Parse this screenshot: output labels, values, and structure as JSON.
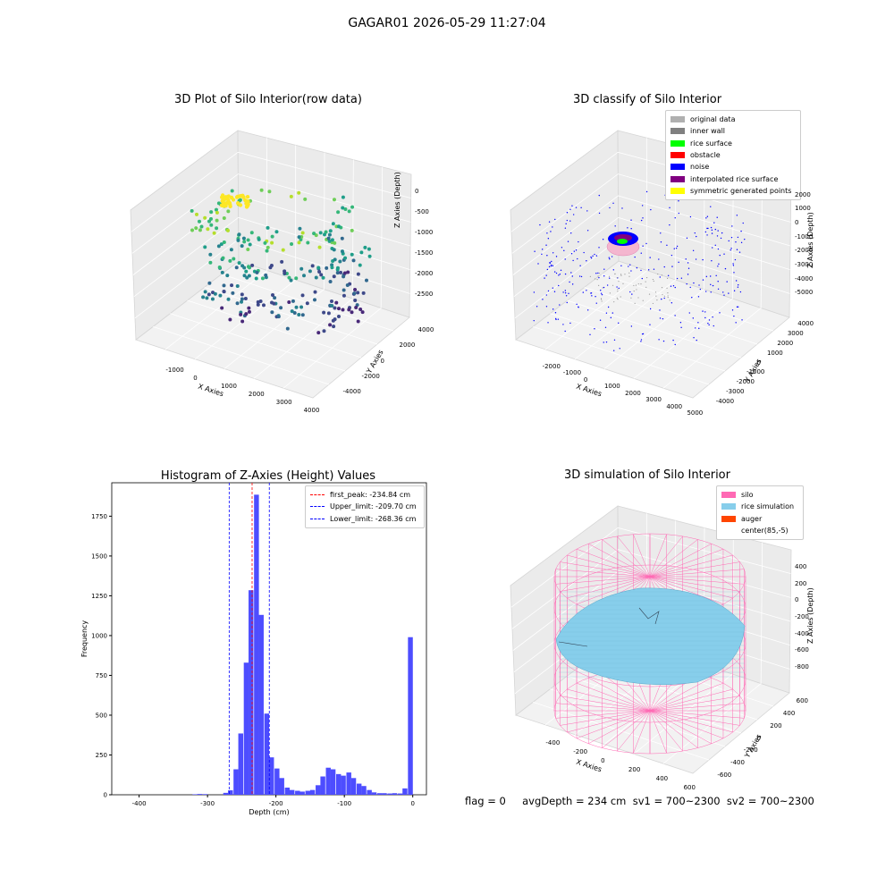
{
  "suptitle": "GAGAR01 2026-05-29 11:27:04",
  "panel1": {
    "title": "3D Plot of Silo Interior(row data)",
    "xlabel": "X Axies",
    "ylabel": "Y Axies",
    "zlabel": "Z Axies (Depth)",
    "xticks": [
      "-1000",
      "0",
      "1000",
      "2000",
      "3000",
      "4000"
    ],
    "yticks": [
      "4000",
      "2000",
      "0",
      "-2000",
      "-4000"
    ],
    "zticks": [
      "0",
      "-500",
      "-1000",
      "-1500",
      "-2000",
      "-2500"
    ]
  },
  "panel2": {
    "title": "3D classify of Silo Interior",
    "xlabel": "X Axies",
    "ylabel": "Y Axies",
    "zlabel": "Z Axies (Depth)",
    "xticks": [
      "-2000",
      "-1000",
      "0",
      "1000",
      "2000",
      "3000",
      "4000",
      "5000"
    ],
    "yticks": [
      "4000",
      "3000",
      "2000",
      "1000",
      "0",
      "-1000",
      "-2000",
      "-3000",
      "-4000"
    ],
    "zticks": [
      "2000",
      "1000",
      "0",
      "-1000",
      "-2000",
      "-3000",
      "-4000",
      "-5000"
    ],
    "legend": [
      {
        "label": "original data",
        "color": "#b0b0b0"
      },
      {
        "label": "inner wall",
        "color": "#808080"
      },
      {
        "label": "rice surface",
        "color": "#00ff00"
      },
      {
        "label": "obstacle",
        "color": "#ff0000"
      },
      {
        "label": "noise",
        "color": "#0000ff"
      },
      {
        "label": "interpolated rice surface",
        "color": "#800080"
      },
      {
        "label": "symmetric generated points",
        "color": "#ffff00"
      }
    ]
  },
  "panel4": {
    "title": "3D simulation of Silo Interior",
    "xlabel": "X Axies",
    "ylabel": "Y Axies",
    "zlabel": "Z Axies (Depth)",
    "xticks": [
      "-400",
      "-200",
      "0",
      "200",
      "400",
      "600"
    ],
    "yticks": [
      "600",
      "400",
      "200",
      "0",
      "-200",
      "-400",
      "-600"
    ],
    "zticks": [
      "400",
      "200",
      "0",
      "-200",
      "-400",
      "-600",
      "-800"
    ],
    "legend": [
      {
        "label": "silo",
        "color": "#ff69b4"
      },
      {
        "label": "rice simulation",
        "color": "#87ceeb"
      },
      {
        "label": "auger",
        "color": "#ff4500"
      },
      {
        "label": "center(85,-5)",
        "color": "#ffffff"
      }
    ]
  },
  "flag_text": "flag = 0     avgDepth = 234 cm  sv1 = 700~2300  sv2 = 700~2300",
  "chart_data": {
    "type": "bar",
    "title": "Histogram of Z-Axies (Height) Values",
    "xlabel": "Depth (cm)",
    "ylabel": "Frequency",
    "xlim": [
      -440,
      20
    ],
    "ylim": [
      0,
      1960
    ],
    "xticks": [
      -400,
      -300,
      -200,
      -100,
      0
    ],
    "yticks": [
      0,
      250,
      500,
      750,
      1000,
      1250,
      1500,
      1750
    ],
    "bin_width": 7.5,
    "bins": [
      [
        -322,
        3
      ],
      [
        -315,
        5
      ],
      [
        -307,
        4
      ],
      [
        -277,
        12
      ],
      [
        -270,
        28
      ],
      [
        -262,
        160
      ],
      [
        -255,
        385
      ],
      [
        -247,
        830
      ],
      [
        -240,
        1285
      ],
      [
        -232,
        1885
      ],
      [
        -225,
        1130
      ],
      [
        -217,
        510
      ],
      [
        -210,
        235
      ],
      [
        -202,
        165
      ],
      [
        -195,
        105
      ],
      [
        -187,
        45
      ],
      [
        -180,
        30
      ],
      [
        -172,
        25
      ],
      [
        -165,
        20
      ],
      [
        -157,
        25
      ],
      [
        -150,
        30
      ],
      [
        -142,
        60
      ],
      [
        -135,
        115
      ],
      [
        -127,
        170
      ],
      [
        -120,
        160
      ],
      [
        -112,
        130
      ],
      [
        -105,
        120
      ],
      [
        -97,
        140
      ],
      [
        -90,
        105
      ],
      [
        -82,
        70
      ],
      [
        -75,
        55
      ],
      [
        -67,
        30
      ],
      [
        -60,
        15
      ],
      [
        -52,
        10
      ],
      [
        -45,
        10
      ],
      [
        -37,
        8
      ],
      [
        -30,
        10
      ],
      [
        -22,
        8
      ],
      [
        -15,
        40
      ],
      [
        -7,
        990
      ]
    ],
    "vlines": [
      {
        "label": "first_peak: -234.84 cm",
        "x": -234.84,
        "color": "#ff0000"
      },
      {
        "label": "Upper_limit: -209.70 cm",
        "x": -209.7,
        "color": "#0000ff"
      },
      {
        "label": "Lower_limit: -268.36 cm",
        "x": -268.36,
        "color": "#0000ff"
      }
    ],
    "bar_color": "#4d4dff"
  }
}
